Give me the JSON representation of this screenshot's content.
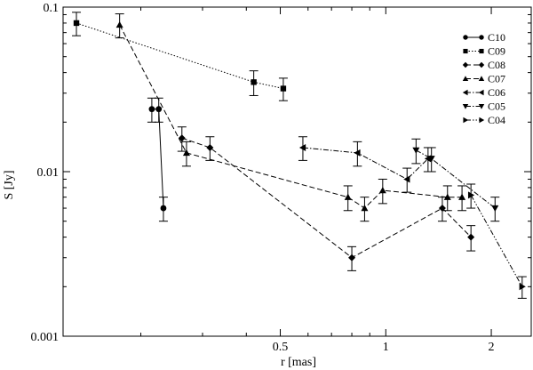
{
  "chart_data": {
    "type": "scatter",
    "xlabel": "r [mas]",
    "ylabel": "S [Jy]",
    "xscale": "log",
    "yscale": "log",
    "xlim": [
      0.12,
      2.6
    ],
    "ylim": [
      0.001,
      0.1
    ],
    "x_ticks": [
      0.5,
      1,
      2
    ],
    "x_tick_labels": [
      "0.5",
      "1",
      "2"
    ],
    "y_ticks": [
      0.001,
      0.01,
      0.1
    ],
    "y_tick_labels": [
      "0.001",
      "0.01",
      "0.1"
    ],
    "grid": false,
    "legend_position": "top-right",
    "series": [
      {
        "name": "C10",
        "marker": "circle",
        "line": "solid",
        "x": [
          0.215,
          0.225,
          0.232
        ],
        "y": [
          0.024,
          0.024,
          0.006
        ],
        "err": [
          0.004,
          0.004,
          0.001
        ]
      },
      {
        "name": "C09",
        "marker": "square",
        "line": "dotted",
        "x": [
          0.131,
          0.42,
          0.51
        ],
        "y": [
          0.08,
          0.035,
          0.032
        ],
        "err": [
          0.013,
          0.006,
          0.005
        ]
      },
      {
        "name": "C08",
        "marker": "diamond",
        "line": "dashed",
        "x": [
          0.262,
          0.315,
          0.8,
          1.45,
          1.75
        ],
        "y": [
          0.016,
          0.014,
          0.003,
          0.006,
          0.004
        ],
        "err": [
          0.0027,
          0.0023,
          0.0005,
          0.001,
          0.0007
        ]
      },
      {
        "name": "C07",
        "marker": "triangle-up",
        "line": "dashed",
        "x": [
          0.174,
          0.27,
          0.78,
          0.87,
          0.98,
          1.5,
          1.65
        ],
        "y": [
          0.078,
          0.013,
          0.007,
          0.006,
          0.0077,
          0.007,
          0.007
        ],
        "err": [
          0.013,
          0.0022,
          0.0012,
          0.001,
          0.0013,
          0.0012,
          0.0012
        ]
      },
      {
        "name": "C06",
        "marker": "triangle-left",
        "line": "dashdot",
        "x": [
          0.58,
          0.83,
          1.15,
          1.32
        ],
        "y": [
          0.014,
          0.013,
          0.009,
          0.012
        ],
        "err": [
          0.0023,
          0.0022,
          0.0015,
          0.002
        ]
      },
      {
        "name": "C05",
        "marker": "triangle-down",
        "line": "dashdot",
        "x": [
          1.22,
          1.35,
          2.05
        ],
        "y": [
          0.0135,
          0.012,
          0.006
        ],
        "err": [
          0.0023,
          0.002,
          0.001
        ]
      },
      {
        "name": "C04",
        "marker": "triangle-right",
        "line": "dashdotdot",
        "x": [
          1.75,
          2.45
        ],
        "y": [
          0.0072,
          0.002
        ],
        "err": [
          0.0012,
          0.0003
        ]
      }
    ]
  }
}
